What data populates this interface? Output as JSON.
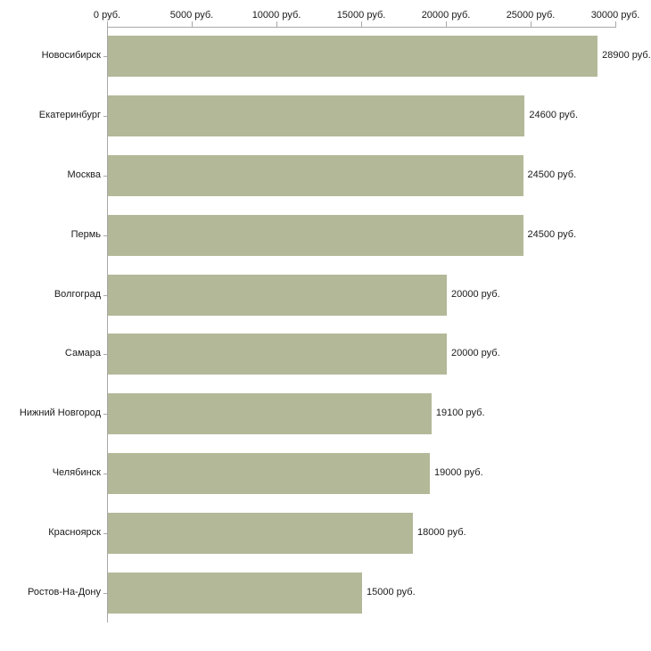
{
  "chart_data": {
    "type": "bar",
    "orientation": "horizontal",
    "title": "",
    "xlabel": "",
    "ylabel": "",
    "unit": "руб.",
    "categories": [
      "Новосибирск",
      "Екатеринбург",
      "Москва",
      "Пермь",
      "Волгоград",
      "Самара",
      "Нижний Новгород",
      "Челябинск",
      "Красноярск",
      "Ростов-На-Дону"
    ],
    "values": [
      28900,
      24600,
      24500,
      24500,
      20000,
      20000,
      19100,
      19000,
      18000,
      15000
    ],
    "value_labels": [
      "28900 руб.",
      "24600 руб.",
      "24500 руб.",
      "24500 руб.",
      "20000 руб.",
      "20000 руб.",
      "19100 руб.",
      "19000 руб.",
      "18000 руб.",
      "15000 руб."
    ],
    "x_ticks": [
      0,
      5000,
      10000,
      15000,
      20000,
      25000,
      30000
    ],
    "x_tick_labels": [
      "0 руб.",
      "5000 руб.",
      "10000 руб.",
      "15000 руб.",
      "20000 руб.",
      "25000 руб.",
      "30000 руб."
    ],
    "xlim": [
      0,
      30000
    ],
    "grid": false,
    "legend": false,
    "bar_color": "#b3b998",
    "axis_color": "#a8a8a8",
    "text_color": "#1a1a1a",
    "background_color": "#ffffff"
  }
}
